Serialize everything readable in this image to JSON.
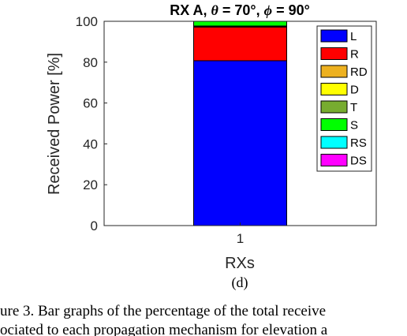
{
  "chart_data": {
    "type": "bar",
    "stacked": true,
    "title_parts": [
      "RX A, ",
      "θ",
      " = 70°, ",
      "ϕ",
      " = 90°"
    ],
    "xlabel": "RXs",
    "ylabel": "Received Power [%]",
    "categories": [
      "1"
    ],
    "ylim": [
      0,
      100
    ],
    "yticks": [
      0,
      20,
      40,
      60,
      80,
      100
    ],
    "grid": false,
    "legend_position": "top-right",
    "series": [
      {
        "name": "L",
        "color": "#0000FF",
        "values": [
          80.7
        ]
      },
      {
        "name": "R",
        "color": "#FF0000",
        "values": [
          16.5
        ]
      },
      {
        "name": "RD",
        "color": "#EDB120",
        "values": [
          0.3
        ]
      },
      {
        "name": "D",
        "color": "#FFFF00",
        "values": [
          0.0
        ]
      },
      {
        "name": "T",
        "color": "#77AC30",
        "values": [
          0.2
        ]
      },
      {
        "name": "S",
        "color": "#00FF00",
        "values": [
          2.3
        ]
      },
      {
        "name": "RS",
        "color": "#00FFFF",
        "values": [
          0.0
        ]
      },
      {
        "name": "DS",
        "color": "#FF00FF",
        "values": [
          0.0
        ]
      }
    ]
  },
  "subcaption": "(d)",
  "caption_lines": [
    "ure 3.    Bar graphs of the percentage of the total receive",
    "ociated to each propagation mechanism for elevation a"
  ]
}
